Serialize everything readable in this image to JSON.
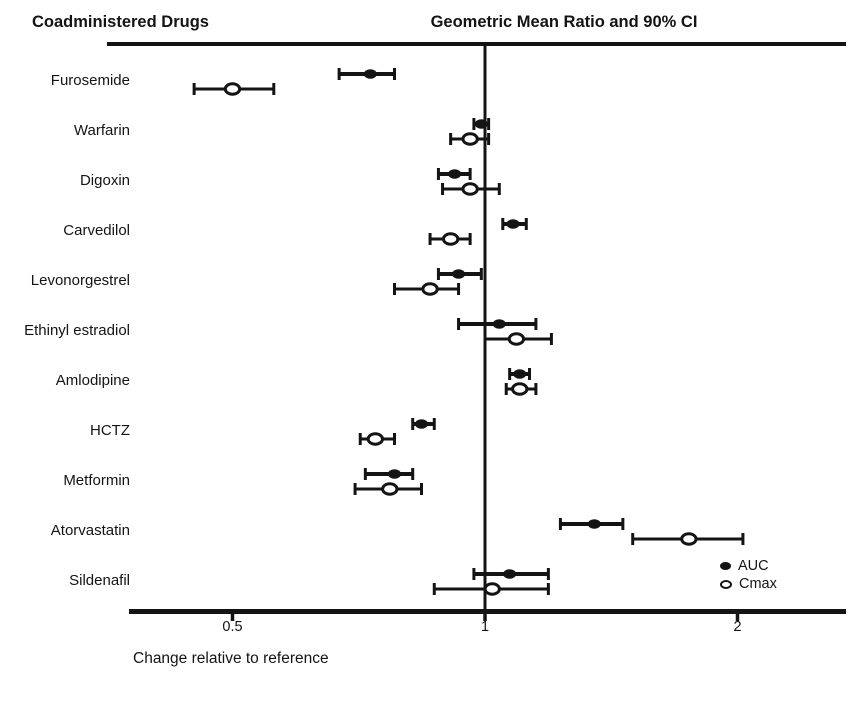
{
  "header": {
    "left_title": "Coadministered Drugs",
    "right_title": "Geometric Mean Ratio and 90% CI"
  },
  "axis": {
    "label": "Change relative to reference",
    "tick_labels": [
      "0.5",
      "1",
      "2"
    ]
  },
  "legend": {
    "items": [
      {
        "label": "AUC",
        "marker": "filled-circle"
      },
      {
        "label": "Cmax",
        "marker": "open-circle"
      }
    ]
  },
  "colors": {
    "ink": "#141414",
    "background": "#ffffff"
  },
  "chart_data": {
    "type": "scatter",
    "subtype": "forest-plot",
    "title": "Geometric Mean Ratio and 90% CI",
    "left_column_title": "Coadministered Drugs",
    "xlabel": "Change relative to reference",
    "x_scale": "log2",
    "x_ticks": [
      0.5,
      1,
      2
    ],
    "xlim": [
      0.38,
      2.69
    ],
    "reference_line": 1.0,
    "grid": false,
    "legend_position": "bottom-right",
    "ci_level": "90%",
    "series_labels": [
      "AUC",
      "Cmax"
    ],
    "rows": [
      {
        "drug": "Furosemide",
        "auc": {
          "gmr": 0.73,
          "lo": 0.67,
          "hi": 0.78
        },
        "cmax": {
          "gmr": 0.5,
          "lo": 0.45,
          "hi": 0.56
        }
      },
      {
        "drug": "Warfarin",
        "auc": {
          "gmr": 0.99,
          "lo": 0.97,
          "hi": 1.01
        },
        "cmax": {
          "gmr": 0.96,
          "lo": 0.91,
          "hi": 1.01
        }
      },
      {
        "drug": "Digoxin",
        "auc": {
          "gmr": 0.92,
          "lo": 0.88,
          "hi": 0.96
        },
        "cmax": {
          "gmr": 0.96,
          "lo": 0.89,
          "hi": 1.04
        }
      },
      {
        "drug": "Carvedilol",
        "auc": {
          "gmr": 1.08,
          "lo": 1.05,
          "hi": 1.12
        },
        "cmax": {
          "gmr": 0.91,
          "lo": 0.86,
          "hi": 0.96
        }
      },
      {
        "drug": "Levonorgestrel",
        "auc": {
          "gmr": 0.93,
          "lo": 0.88,
          "hi": 0.99
        },
        "cmax": {
          "gmr": 0.86,
          "lo": 0.78,
          "hi": 0.93
        }
      },
      {
        "drug": "Ethinyl estradiol",
        "auc": {
          "gmr": 1.04,
          "lo": 0.93,
          "hi": 1.15
        },
        "cmax": {
          "gmr": 1.09,
          "lo": 1.0,
          "hi": 1.2
        }
      },
      {
        "drug": "Amlodipine",
        "auc": {
          "gmr": 1.1,
          "lo": 1.07,
          "hi": 1.13
        },
        "cmax": {
          "gmr": 1.1,
          "lo": 1.06,
          "hi": 1.15
        }
      },
      {
        "drug": "HCTZ",
        "auc": {
          "gmr": 0.84,
          "lo": 0.82,
          "hi": 0.87
        },
        "cmax": {
          "gmr": 0.74,
          "lo": 0.71,
          "hi": 0.78
        }
      },
      {
        "drug": "Metformin",
        "auc": {
          "gmr": 0.78,
          "lo": 0.72,
          "hi": 0.82
        },
        "cmax": {
          "gmr": 0.77,
          "lo": 0.7,
          "hi": 0.84
        }
      },
      {
        "drug": "Atorvastatin",
        "auc": {
          "gmr": 1.35,
          "lo": 1.23,
          "hi": 1.46
        },
        "cmax": {
          "gmr": 1.75,
          "lo": 1.5,
          "hi": 2.03
        }
      },
      {
        "drug": "Sildenafil",
        "auc": {
          "gmr": 1.07,
          "lo": 0.97,
          "hi": 1.19
        },
        "cmax": {
          "gmr": 1.02,
          "lo": 0.87,
          "hi": 1.19
        }
      }
    ]
  }
}
